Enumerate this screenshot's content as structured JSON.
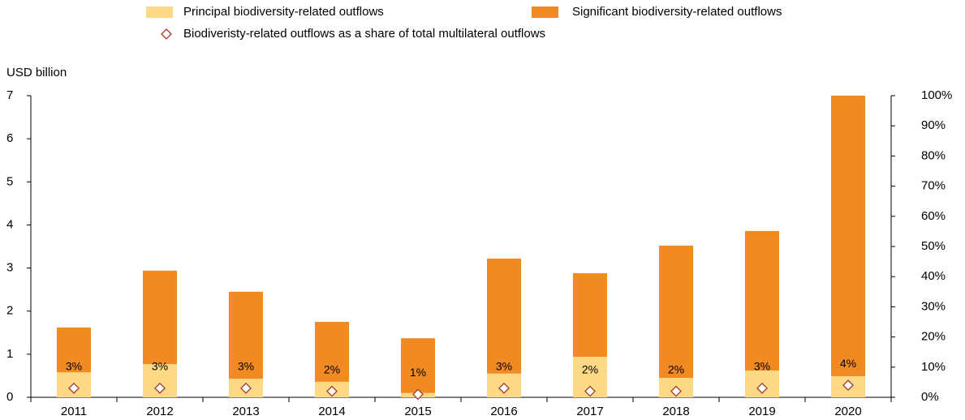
{
  "chart_data": {
    "type": "bar",
    "stacked": true,
    "y_label": "USD billion",
    "categories": [
      "2011",
      "2012",
      "2013",
      "2014",
      "2015",
      "2016",
      "2017",
      "2018",
      "2019",
      "2020"
    ],
    "series": [
      {
        "name": "Principal biodiversity-related outflows",
        "color": "#fdd985",
        "values": [
          0.58,
          0.77,
          0.43,
          0.36,
          0.1,
          0.55,
          0.94,
          0.45,
          0.62,
          0.49
        ]
      },
      {
        "name": "Significant biodiversity-related outflows",
        "color": "#f28a24",
        "values": [
          1.04,
          2.17,
          2.02,
          1.39,
          1.27,
          2.67,
          1.94,
          3.07,
          3.24,
          6.51
        ]
      },
      {
        "name": "Biodiveristy-related outflows as a share of total multilateral outflows",
        "type": "scatter",
        "marker": "diamond",
        "color": "#a23a2c",
        "axis": "y2",
        "values": [
          3,
          3,
          3,
          2,
          1,
          3,
          2,
          2,
          3,
          4
        ],
        "value_labels": [
          "3%",
          "3%",
          "3%",
          "2%",
          "1%",
          "3%",
          "2%",
          "2%",
          "3%",
          "4%"
        ]
      }
    ],
    "ylim": [
      0,
      7
    ],
    "yticks": [
      0,
      1,
      2,
      3,
      4,
      5,
      6,
      7
    ],
    "y2lim": [
      0,
      100
    ],
    "y2ticks": [
      {
        "value": 0,
        "label": "0%"
      },
      {
        "value": 10,
        "label": "10%"
      },
      {
        "value": 20,
        "label": "20%"
      },
      {
        "value": 30,
        "label": "30%"
      },
      {
        "value": 40,
        "label": "40%"
      },
      {
        "value": 50,
        "label": "50%"
      },
      {
        "value": 60,
        "label": "60%"
      },
      {
        "value": 70,
        "label": "70%"
      },
      {
        "value": 80,
        "label": "80%"
      },
      {
        "value": 90,
        "label": "90%"
      },
      {
        "value": 100,
        "label": "100%"
      }
    ],
    "grid": false
  }
}
